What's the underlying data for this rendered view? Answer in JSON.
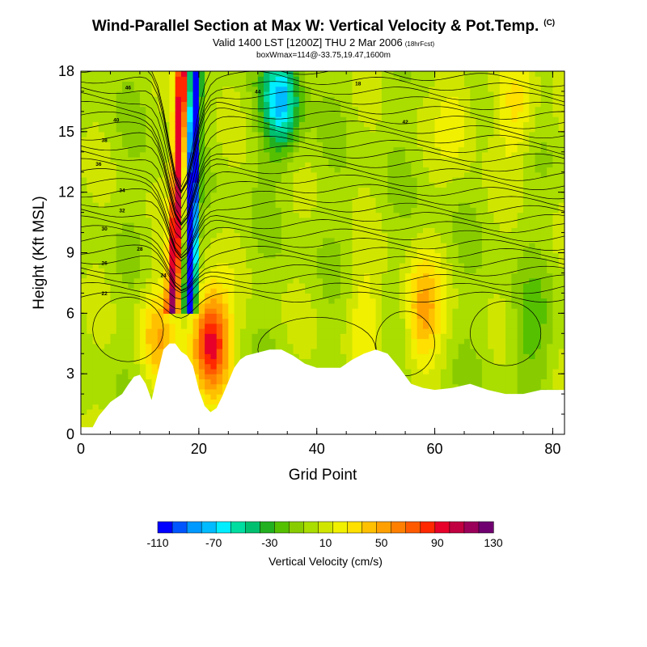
{
  "title": "Wind-Parallel Section at Max W: Vertical Velocity & Pot.Temp.",
  "title_mark": "(C)",
  "subtitle": "Valid 1400 LST [1200Z] THU 2 Mar 2006",
  "subtitle_note": "(18hrFcst)",
  "box_info": "boxWmax=114@-33.75,19.47,1600m",
  "chart_data": {
    "type": "heatmap",
    "xlabel": "Grid Point",
    "ylabel": "Height (Kft MSL)",
    "xlim": [
      0,
      82
    ],
    "ylim": [
      0,
      18
    ],
    "x_ticks": [
      0,
      20,
      40,
      60,
      80
    ],
    "y_ticks": [
      0,
      3,
      6,
      9,
      12,
      15,
      18
    ],
    "colorbar": {
      "title": "Vertical Velocity (cm/s)",
      "tick_labels": [
        "-110",
        "-70",
        "-30",
        "10",
        "50",
        "90",
        "130"
      ],
      "colors": [
        "#0000ff",
        "#0055ff",
        "#0099ff",
        "#00bbff",
        "#00eeff",
        "#00dda0",
        "#00c070",
        "#22b020",
        "#55c000",
        "#88cc00",
        "#aadd00",
        "#d0e600",
        "#f0f000",
        "#ffe000",
        "#ffc000",
        "#ffa000",
        "#ff8000",
        "#ff5a00",
        "#ff2800",
        "#e6002a",
        "#c00040",
        "#9a005a",
        "#700070"
      ]
    },
    "terrain_profile": [
      [
        0,
        0.35
      ],
      [
        2,
        0.35
      ],
      [
        3,
        0.9
      ],
      [
        5,
        1.6
      ],
      [
        7,
        2.0
      ],
      [
        8,
        2.45
      ],
      [
        9,
        2.85
      ],
      [
        10,
        2.95
      ],
      [
        11,
        2.5
      ],
      [
        12,
        1.7
      ],
      [
        13,
        3.0
      ],
      [
        14,
        4.2
      ],
      [
        15,
        4.5
      ],
      [
        16,
        4.5
      ],
      [
        17,
        4.1
      ],
      [
        18,
        3.9
      ],
      [
        19,
        3.4
      ],
      [
        20,
        2.2
      ],
      [
        21,
        1.4
      ],
      [
        22,
        1.1
      ],
      [
        23,
        1.3
      ],
      [
        24,
        1.9
      ],
      [
        25,
        2.6
      ],
      [
        26,
        3.3
      ],
      [
        27,
        3.7
      ],
      [
        28,
        3.9
      ],
      [
        30,
        4.05
      ],
      [
        32,
        4.2
      ],
      [
        34,
        4.2
      ],
      [
        36,
        3.9
      ],
      [
        38,
        3.5
      ],
      [
        40,
        3.3
      ],
      [
        44,
        3.3
      ],
      [
        46,
        3.7
      ],
      [
        48,
        4.0
      ],
      [
        50,
        4.2
      ],
      [
        52,
        4.0
      ],
      [
        54,
        3.3
      ],
      [
        56,
        2.5
      ],
      [
        58,
        2.3
      ],
      [
        60,
        2.2
      ],
      [
        63,
        2.3
      ],
      [
        66,
        2.5
      ],
      [
        69,
        2.2
      ],
      [
        72,
        2.0
      ],
      [
        75,
        2.0
      ],
      [
        78,
        2.2
      ],
      [
        82,
        2.2
      ]
    ],
    "w_features": [
      {
        "x": 16,
        "y": 14,
        "w": 95
      },
      {
        "x": 18.5,
        "y": 14,
        "w": -110
      },
      {
        "x": 34,
        "y": 16.5,
        "w": -70
      },
      {
        "x": 22,
        "y": 4.6,
        "w": 100
      },
      {
        "x": 58,
        "y": 6,
        "w": 50
      },
      {
        "x": 74,
        "y": 16,
        "w": 30
      },
      {
        "x": 64,
        "y": 16,
        "w": 25
      },
      {
        "x": 48,
        "y": 6,
        "w": 20
      },
      {
        "x": 76,
        "y": 5,
        "w": -20
      },
      {
        "x": 13,
        "y": 5,
        "w": 40
      }
    ],
    "contour_labels": [
      "46",
      "40",
      "38",
      "36",
      "34",
      "32",
      "30",
      "28",
      "26",
      "24",
      "22",
      "18",
      "42",
      "44"
    ]
  }
}
